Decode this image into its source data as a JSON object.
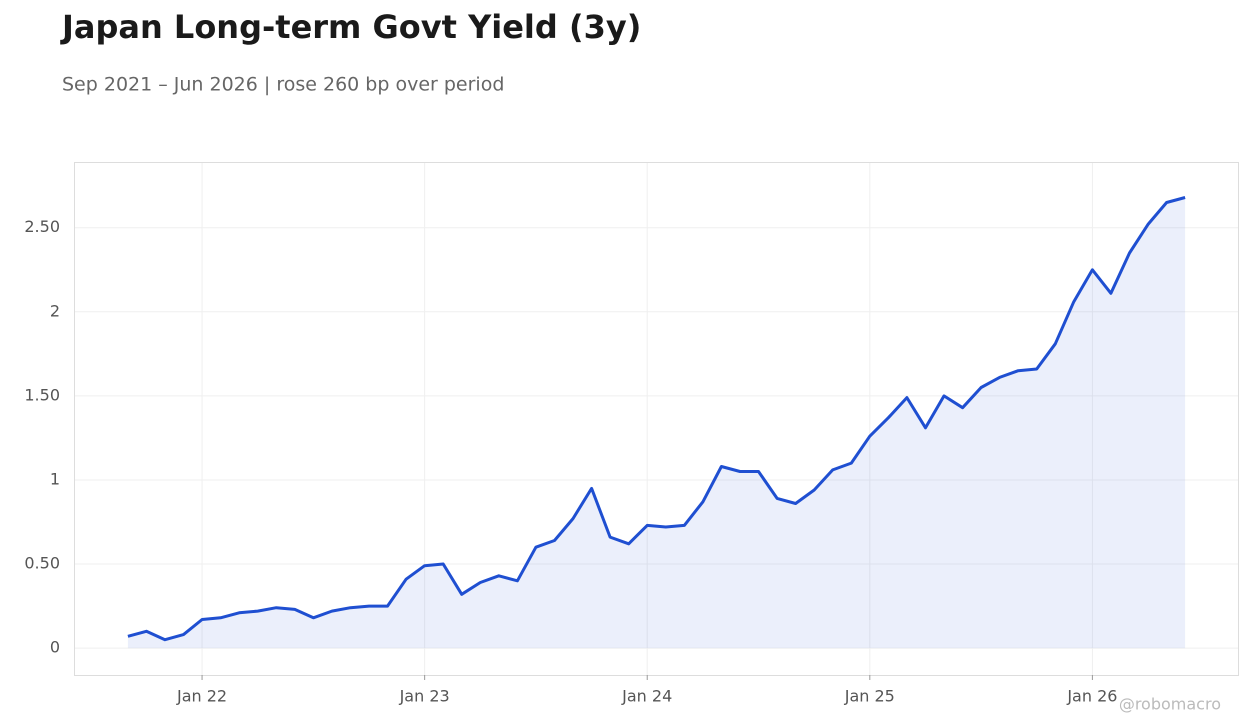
{
  "chart_data": {
    "type": "area-line",
    "title": "Japan Long-term Govt Yield (3y)",
    "subtitle": "Sep 2021 – Jun 2026 | rose 260 bp over period",
    "watermark": "@robomacro",
    "color": "#1f4fd1",
    "grid": true,
    "x": [
      "2021-09",
      "2021-10",
      "2021-11",
      "2021-12",
      "2022-01",
      "2022-02",
      "2022-03",
      "2022-04",
      "2022-05",
      "2022-06",
      "2022-07",
      "2022-08",
      "2022-09",
      "2022-10",
      "2022-11",
      "2022-12",
      "2023-01",
      "2023-02",
      "2023-03",
      "2023-04",
      "2023-05",
      "2023-06",
      "2023-07",
      "2023-08",
      "2023-09",
      "2023-10",
      "2023-11",
      "2023-12",
      "2024-01",
      "2024-02",
      "2024-03",
      "2024-04",
      "2024-05",
      "2024-06",
      "2024-07",
      "2024-08",
      "2024-09",
      "2024-10",
      "2024-11",
      "2024-12",
      "2025-01",
      "2025-02",
      "2025-03",
      "2025-04",
      "2025-05",
      "2025-06",
      "2025-07",
      "2025-08",
      "2025-09",
      "2025-10",
      "2025-11",
      "2025-12",
      "2026-01",
      "2026-02",
      "2026-03",
      "2026-04",
      "2026-05",
      "2026-06"
    ],
    "values": [
      0.07,
      0.1,
      0.05,
      0.08,
      0.17,
      0.18,
      0.21,
      0.22,
      0.24,
      0.23,
      0.18,
      0.22,
      0.24,
      0.25,
      0.25,
      0.41,
      0.49,
      0.5,
      0.32,
      0.39,
      0.43,
      0.4,
      0.6,
      0.64,
      0.77,
      0.95,
      0.66,
      0.62,
      0.73,
      0.72,
      0.73,
      0.87,
      1.08,
      1.05,
      1.05,
      0.89,
      0.86,
      0.94,
      1.06,
      1.1,
      1.26,
      1.37,
      1.49,
      1.31,
      1.5,
      1.43,
      1.55,
      1.61,
      1.65,
      1.66,
      1.81,
      2.06,
      2.25,
      2.11,
      2.35,
      2.52,
      2.65,
      2.68
    ],
    "ylim": [
      -0.16,
      2.885
    ],
    "yticks": [
      0,
      {
        "value": 0.5,
        "label": "0.50"
      },
      1,
      {
        "value": 1.5,
        "label": "1.50"
      },
      2,
      {
        "value": 2.5,
        "label": "2.50"
      }
    ],
    "xticks": [
      {
        "value": "2022-01",
        "label": "Jan 22"
      },
      {
        "value": "2023-01",
        "label": "Jan 23"
      },
      {
        "value": "2024-01",
        "label": "Jan 24"
      },
      {
        "value": "2025-01",
        "label": "Jan 25"
      },
      {
        "value": "2026-01",
        "label": "Jan 26"
      }
    ]
  }
}
